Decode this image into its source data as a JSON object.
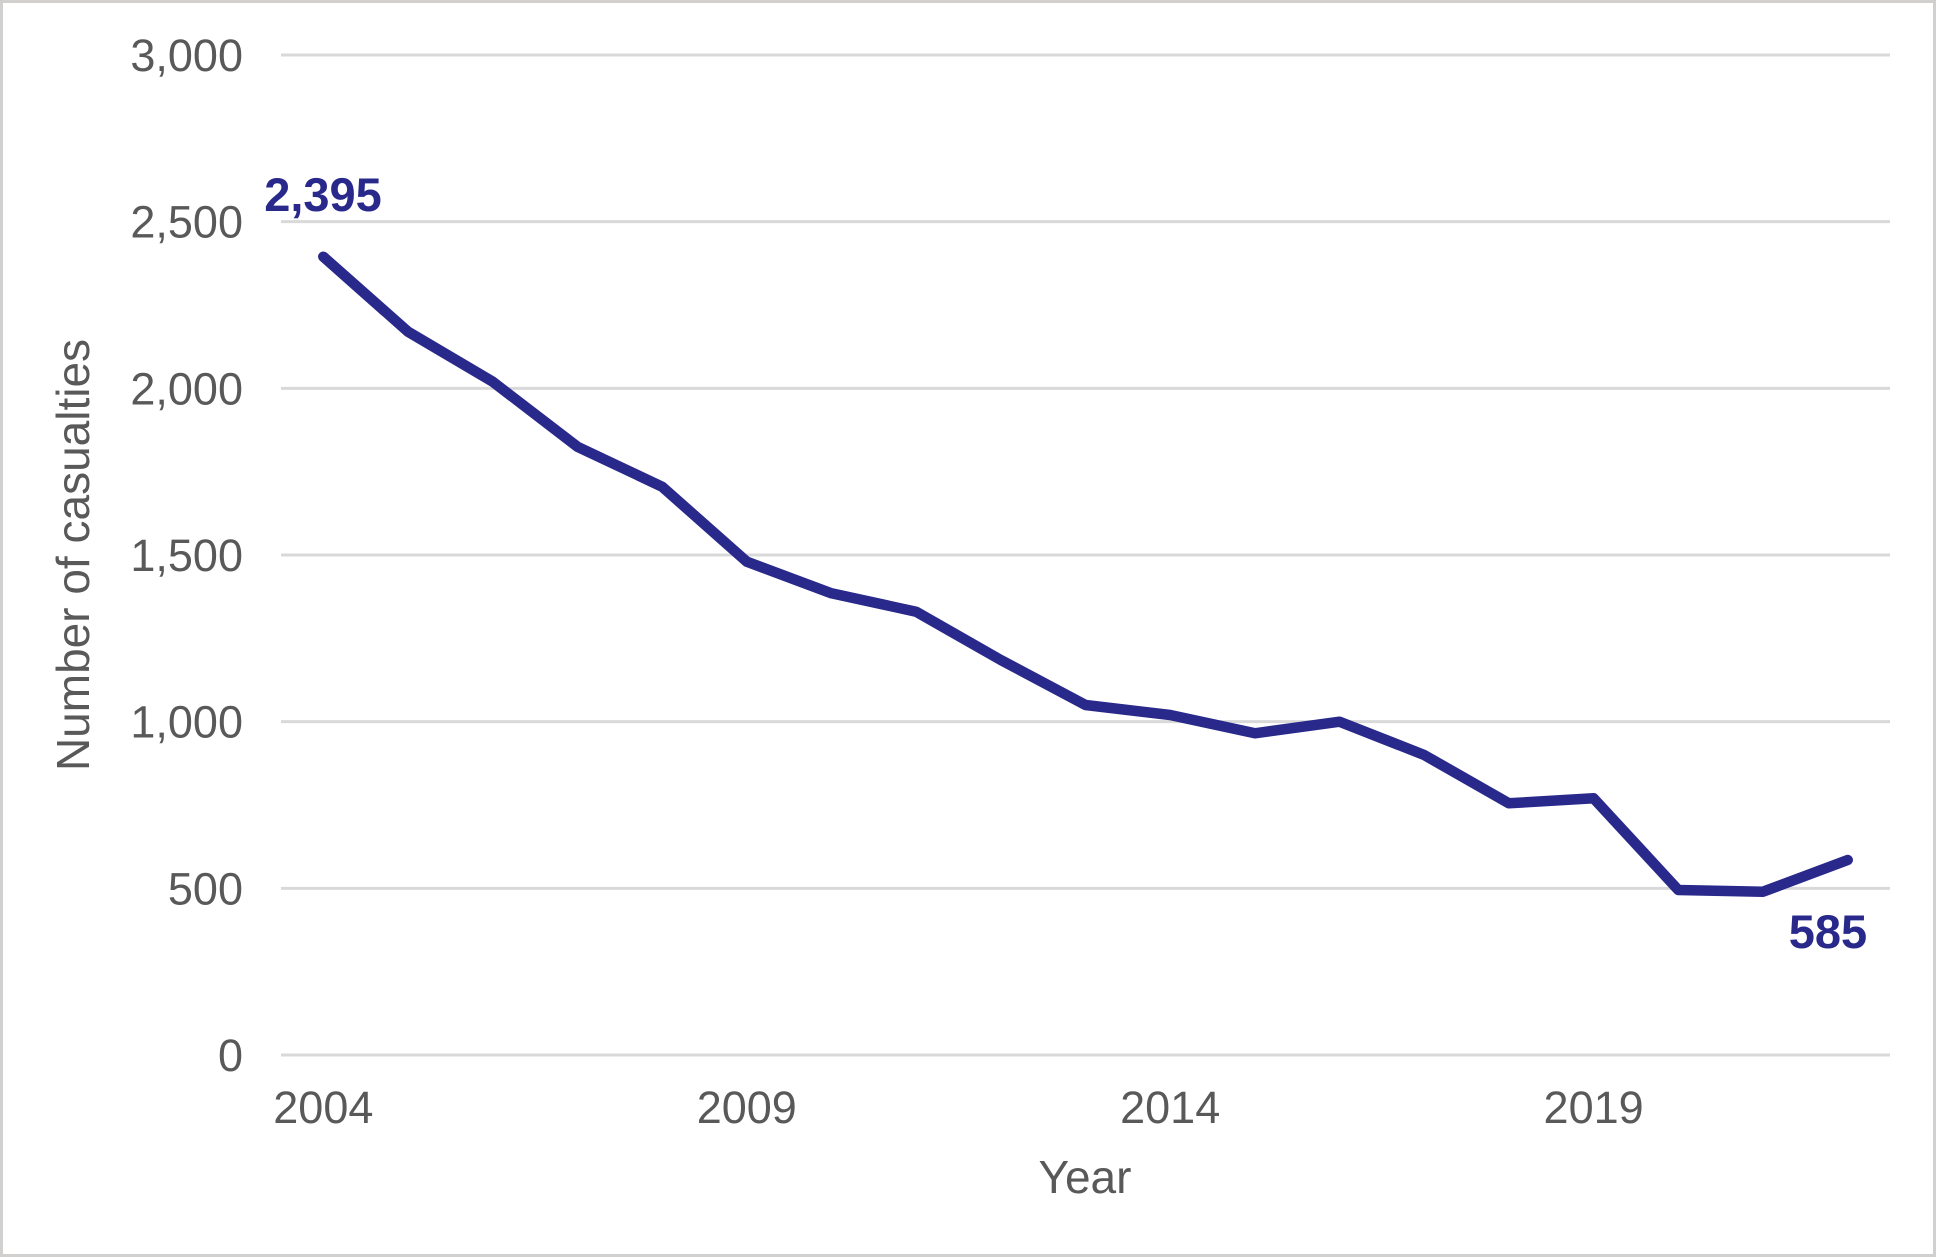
{
  "chart_data": {
    "type": "line",
    "title": "",
    "xlabel": "Year",
    "ylabel": "Number of casualties",
    "categories": [
      2004,
      2005,
      2006,
      2007,
      2008,
      2009,
      2010,
      2011,
      2012,
      2013,
      2014,
      2015,
      2016,
      2017,
      2018,
      2019,
      2020,
      2021,
      2022
    ],
    "series": [
      {
        "name": "Number of casualties",
        "values": [
          2395,
          2170,
          2020,
          1825,
          1705,
          1480,
          1385,
          1330,
          1185,
          1050,
          1020,
          965,
          1000,
          900,
          755,
          770,
          495,
          490,
          585
        ]
      }
    ],
    "ylim": [
      0,
      3000
    ],
    "ytick_step": 500,
    "ytick_labels": [
      "0",
      "500",
      "1,000",
      "1,500",
      "2,000",
      "2,500",
      "3,000"
    ],
    "xtick_years": [
      2004,
      2009,
      2014,
      2019
    ],
    "grid": "horizontal-only",
    "legend": "none",
    "annotations": {
      "first_point_label": "2,395",
      "last_point_label": "585"
    },
    "colors": {
      "line": "#29298c",
      "data_label": "#29298c",
      "axis_text": "#595959",
      "gridline": "#d9d9d9",
      "background": "#ffffff",
      "canvas_border": "#d2cfcf"
    }
  }
}
